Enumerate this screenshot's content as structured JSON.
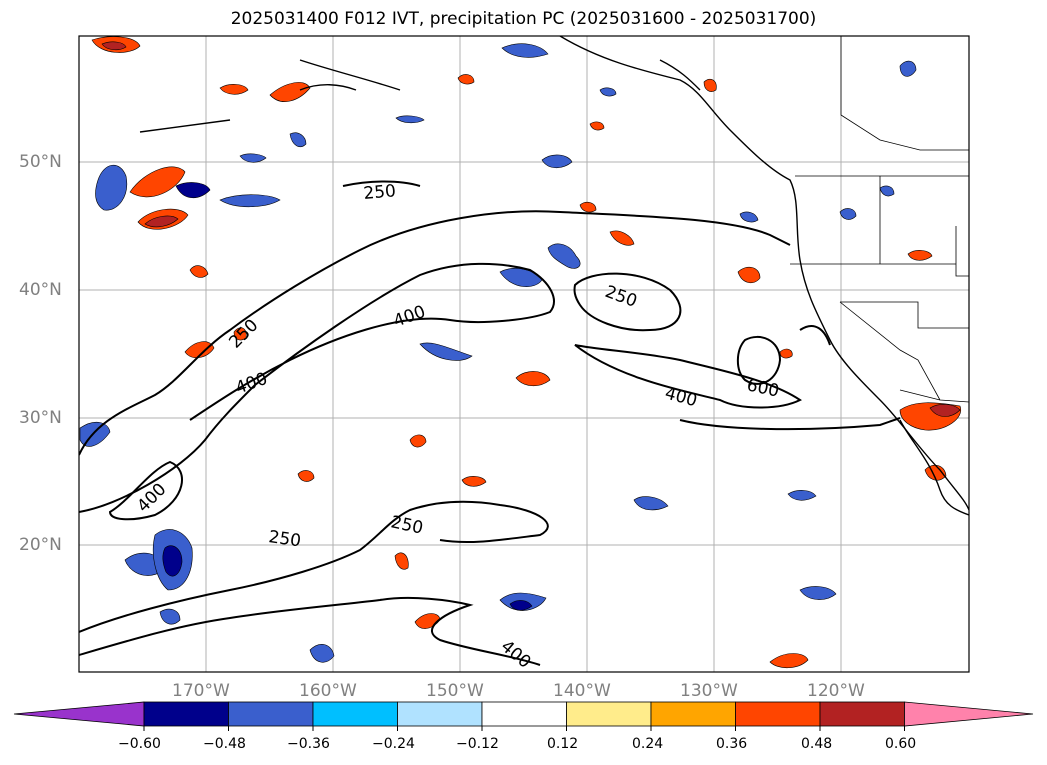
{
  "title": "2025031400 F012 IVT, precipitation PC (2025031600 - 2025031700)",
  "axes": {
    "lat_labels": [
      "50°N",
      "40°N",
      "30°N",
      "20°N"
    ],
    "lon_labels": [
      "170°W",
      "160°W",
      "150°W",
      "140°W",
      "130°W",
      "120°W"
    ]
  },
  "ivt_contour_labels": [
    "250",
    "250",
    "250",
    "400",
    "400",
    "400",
    "400",
    "600",
    "250",
    "250",
    "400"
  ],
  "colorbar": {
    "ticks": [
      "−0.60",
      "−0.48",
      "−0.36",
      "−0.24",
      "−0.12",
      "0.12",
      "0.24",
      "0.36",
      "0.48",
      "0.60"
    ],
    "colors": [
      "#9933cc",
      "#00008b",
      "#3a5fcd",
      "#00bfff",
      "#b0e2ff",
      "#ffffff",
      "#ffec8b",
      "#ffa500",
      "#ff4500",
      "#b22222",
      "#ff82ab"
    ]
  },
  "chart_data": {
    "type": "heatmap",
    "title": "2025031400 F012 IVT, precipitation PC (2025031600 - 2025031700)",
    "ivt_contour_levels": [
      250,
      400,
      600
    ],
    "colorbar_levels": [
      -0.6,
      -0.48,
      -0.36,
      -0.24,
      -0.12,
      0.12,
      0.24,
      0.36,
      0.48,
      0.6
    ],
    "lon_ticks": [
      "170°W",
      "160°W",
      "150°W",
      "140°W",
      "130°W",
      "120°W"
    ],
    "lat_ticks": [
      "50°N",
      "40°N",
      "30°N",
      "20°N"
    ]
  }
}
